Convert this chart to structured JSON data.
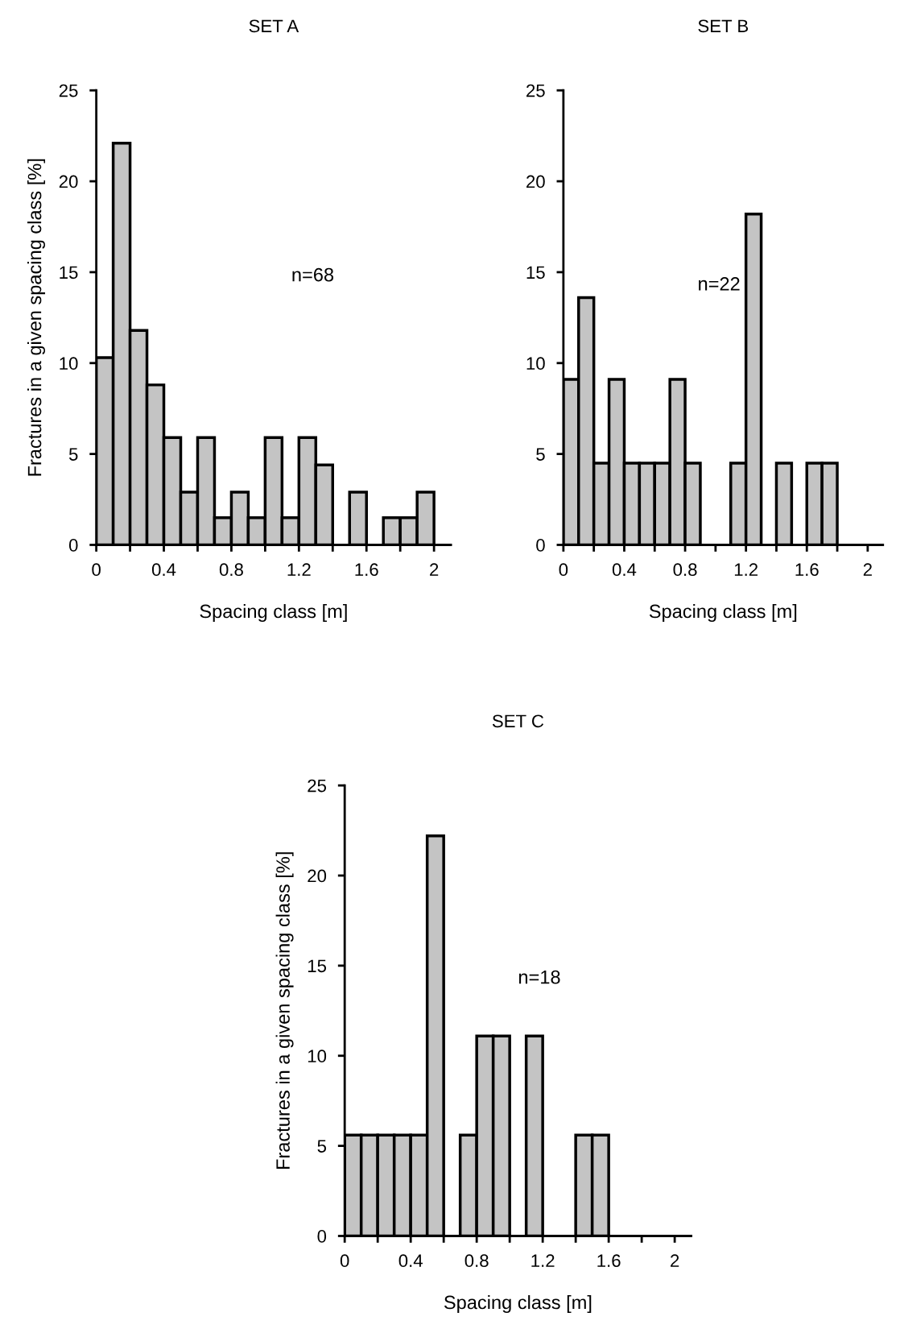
{
  "chart_data": [
    {
      "type": "histogram",
      "title": "SET A",
      "xlabel": "Spacing class [m]",
      "ylabel": "Fractures in a given spacing class [%]",
      "annotations": [
        "n=68"
      ],
      "bins": [
        0,
        0.1,
        0.2,
        0.3,
        0.4,
        0.5,
        0.6,
        0.7,
        0.8,
        0.9,
        1.0,
        1.1,
        1.2,
        1.3,
        1.4,
        1.5,
        1.6,
        1.7,
        1.8,
        1.9,
        2.0
      ],
      "values": [
        10.3,
        22.1,
        11.8,
        8.8,
        5.9,
        2.9,
        5.9,
        1.5,
        2.9,
        1.5,
        5.9,
        1.5,
        5.9,
        4.4,
        0,
        2.9,
        0,
        1.5,
        1.5,
        2.9
      ],
      "color": "#c4c4c4",
      "xlim": [
        0,
        2.1
      ],
      "ylim": [
        0,
        25
      ],
      "xticks": [
        0,
        {
          "value": 0.2,
          "label": null
        },
        0.4,
        {
          "value": 0.6,
          "label": null
        },
        0.8,
        {
          "value": 1.0,
          "label": null
        },
        1.2,
        {
          "value": 1.4,
          "label": null
        },
        1.6,
        {
          "value": 1.8,
          "label": null
        },
        2
      ],
      "yticks": [
        0,
        5,
        10,
        15,
        20,
        25
      ],
      "grid": false
    },
    {
      "type": "histogram",
      "title": "SET B",
      "xlabel": "Spacing class [m]",
      "annotations": [
        "n=22"
      ],
      "bins": [
        0,
        0.1,
        0.2,
        0.3,
        0.4,
        0.5,
        0.6,
        0.7,
        0.8,
        0.9,
        1.0,
        1.1,
        1.2,
        1.3,
        1.4,
        1.5,
        1.6,
        1.7,
        1.8,
        1.9,
        2.0
      ],
      "values": [
        9.1,
        13.6,
        4.5,
        9.1,
        4.5,
        4.5,
        4.5,
        9.1,
        4.5,
        0,
        0,
        4.5,
        18.2,
        0,
        4.5,
        0,
        4.5,
        4.5,
        0,
        0
      ],
      "color": "#c4c4c4",
      "xlim": [
        0,
        2.1
      ],
      "ylim": [
        0,
        25
      ],
      "xticks": [
        0,
        {
          "value": 0.2,
          "label": null
        },
        0.4,
        {
          "value": 0.6,
          "label": null
        },
        0.8,
        {
          "value": 1.0,
          "label": null
        },
        1.2,
        {
          "value": 1.4,
          "label": null
        },
        1.6,
        {
          "value": 1.8,
          "label": null
        },
        2
      ],
      "yticks": [
        0,
        5,
        10,
        15,
        20,
        25
      ],
      "grid": false
    },
    {
      "type": "histogram",
      "title": "SET C",
      "xlabel": "Spacing class [m]",
      "ylabel": "Fractures in a given spacing class [%]",
      "annotations": [
        "n=18"
      ],
      "bins": [
        0,
        0.1,
        0.2,
        0.3,
        0.4,
        0.5,
        0.6,
        0.7,
        0.8,
        0.9,
        1.0,
        1.1,
        1.2,
        1.3,
        1.4,
        1.5,
        1.6,
        1.7,
        1.8,
        1.9,
        2.0
      ],
      "values": [
        5.6,
        5.6,
        5.6,
        5.6,
        5.6,
        22.2,
        0,
        5.6,
        11.1,
        11.1,
        0,
        11.1,
        0,
        0,
        5.6,
        5.6,
        0,
        0,
        0,
        0
      ],
      "color": "#c4c4c4",
      "xlim": [
        0,
        2.1
      ],
      "ylim": [
        0,
        25
      ],
      "xticks": [
        0,
        {
          "value": 0.2,
          "label": null
        },
        0.4,
        {
          "value": 0.6,
          "label": null
        },
        0.8,
        {
          "value": 1.0,
          "label": null
        },
        1.2,
        {
          "value": 1.4,
          "label": null
        },
        1.6,
        {
          "value": 1.8,
          "label": null
        },
        2
      ],
      "yticks": [
        0,
        5,
        10,
        15,
        20,
        25
      ],
      "grid": false
    }
  ]
}
